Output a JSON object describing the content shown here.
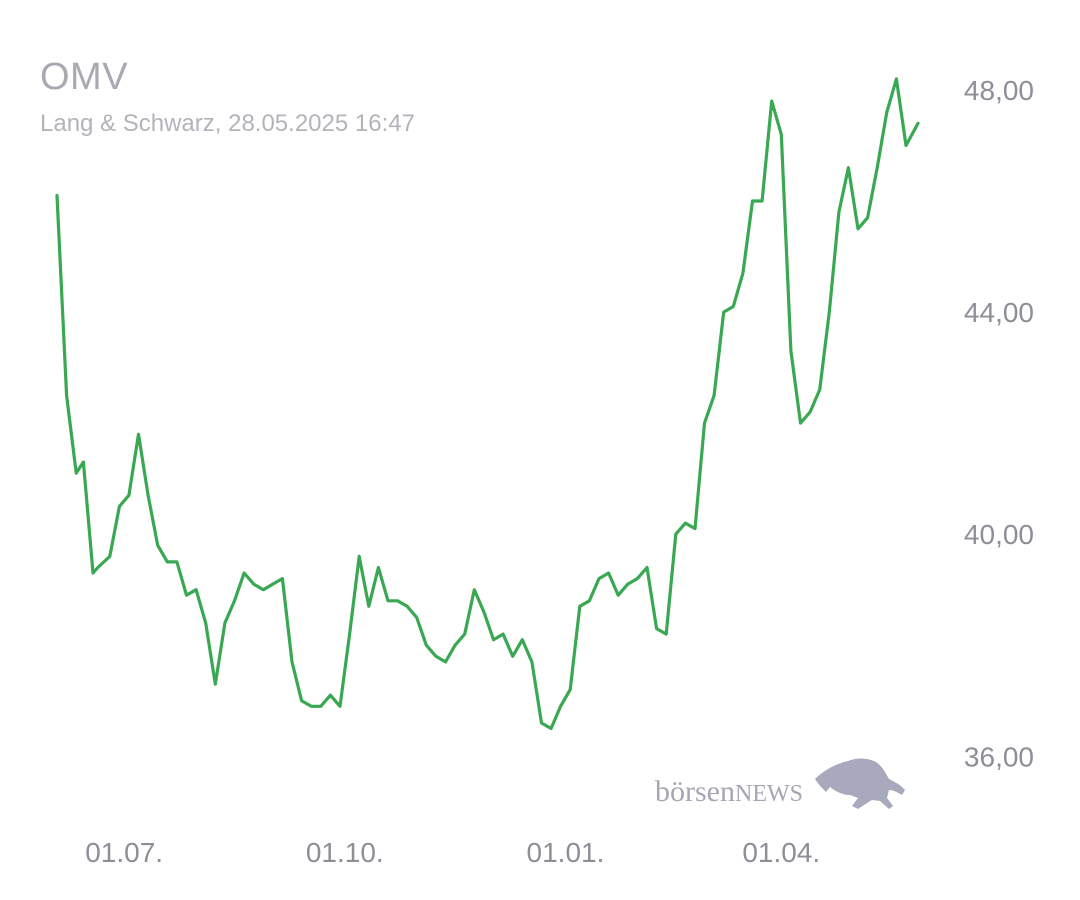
{
  "header": {
    "title": "OMV",
    "subtitle": "Lang & Schwarz, 28.05.2025 16:47"
  },
  "watermark": {
    "prefix": "börsen",
    "suffix": "NEWS",
    "icon": "bull-icon"
  },
  "colors": {
    "line": "#3aa852",
    "text": "#8e8e98",
    "title": "#a9a9b2",
    "watermark": "#a5a5b5"
  },
  "chart_data": {
    "type": "line",
    "title": "OMV",
    "subtitle": "Lang & Schwarz, 28.05.2025 16:47",
    "xlabel": "",
    "ylabel": "",
    "ylim": [
      34.6,
      48.9
    ],
    "xlim": [
      "2025-05-28",
      "2025-05-28"
    ],
    "yticks": [
      48.0,
      44.0,
      40.0,
      36.0
    ],
    "ytick_labels": [
      "48,00",
      "44,00",
      "40,00",
      "36,00"
    ],
    "xticks": [
      "2024-07-01",
      "2024-10-01",
      "2025-01-01",
      "2025-04-01"
    ],
    "xtick_labels": [
      "01.07.",
      "01.10.",
      "01.01.",
      "01.04."
    ],
    "y_axis_position": "right",
    "grid": false,
    "series": [
      {
        "points": [
          [
            "2024-06-03",
            46.1
          ],
          [
            "2024-06-07",
            42.5
          ],
          [
            "2024-06-11",
            41.1
          ],
          [
            "2024-06-14",
            41.3
          ],
          [
            "2024-06-18",
            39.3
          ],
          [
            "2024-06-20",
            39.4
          ],
          [
            "2024-06-25",
            39.6
          ],
          [
            "2024-06-29",
            40.5
          ],
          [
            "2024-07-03",
            40.7
          ],
          [
            "2024-07-07",
            41.8
          ],
          [
            "2024-07-11",
            40.7
          ],
          [
            "2024-07-15",
            39.8
          ],
          [
            "2024-07-19",
            39.5
          ],
          [
            "2024-07-23",
            39.5
          ],
          [
            "2024-07-27",
            38.9
          ],
          [
            "2024-07-31",
            39.0
          ],
          [
            "2024-08-04",
            38.4
          ],
          [
            "2024-08-08",
            37.3
          ],
          [
            "2024-08-12",
            38.4
          ],
          [
            "2024-08-16",
            38.8
          ],
          [
            "2024-08-20",
            39.3
          ],
          [
            "2024-08-24",
            39.1
          ],
          [
            "2024-08-28",
            39.0
          ],
          [
            "2024-09-01",
            39.1
          ],
          [
            "2024-09-05",
            39.2
          ],
          [
            "2024-09-09",
            37.7
          ],
          [
            "2024-09-13",
            37.0
          ],
          [
            "2024-09-17",
            36.9
          ],
          [
            "2024-09-21",
            36.9
          ],
          [
            "2024-09-25",
            37.1
          ],
          [
            "2024-09-29",
            36.9
          ],
          [
            "2024-10-03",
            38.2
          ],
          [
            "2024-10-07",
            39.6
          ],
          [
            "2024-10-11",
            38.7
          ],
          [
            "2024-10-15",
            39.4
          ],
          [
            "2024-10-19",
            38.8
          ],
          [
            "2024-10-23",
            38.8
          ],
          [
            "2024-10-27",
            38.7
          ],
          [
            "2024-10-31",
            38.5
          ],
          [
            "2024-11-04",
            38.0
          ],
          [
            "2024-11-08",
            37.8
          ],
          [
            "2024-11-12",
            37.7
          ],
          [
            "2024-11-16",
            38.0
          ],
          [
            "2024-11-20",
            38.2
          ],
          [
            "2024-11-24",
            39.0
          ],
          [
            "2024-11-28",
            38.6
          ],
          [
            "2024-12-02",
            38.1
          ],
          [
            "2024-12-06",
            38.2
          ],
          [
            "2024-12-10",
            37.8
          ],
          [
            "2024-12-14",
            38.1
          ],
          [
            "2024-12-18",
            37.7
          ],
          [
            "2024-12-22",
            36.6
          ],
          [
            "2024-12-26",
            36.5
          ],
          [
            "2024-12-30",
            36.9
          ],
          [
            "2025-01-03",
            37.2
          ],
          [
            "2025-01-07",
            38.7
          ],
          [
            "2025-01-11",
            38.8
          ],
          [
            "2025-01-15",
            39.2
          ],
          [
            "2025-01-19",
            39.3
          ],
          [
            "2025-01-23",
            38.9
          ],
          [
            "2025-01-27",
            39.1
          ],
          [
            "2025-01-31",
            39.2
          ],
          [
            "2025-02-04",
            39.4
          ],
          [
            "2025-02-08",
            38.3
          ],
          [
            "2025-02-12",
            38.2
          ],
          [
            "2025-02-16",
            40.0
          ],
          [
            "2025-02-20",
            40.2
          ],
          [
            "2025-02-24",
            40.1
          ],
          [
            "2025-02-28",
            42.0
          ],
          [
            "2025-03-04",
            42.5
          ],
          [
            "2025-03-08",
            44.0
          ],
          [
            "2025-03-12",
            44.1
          ],
          [
            "2025-03-16",
            44.7
          ],
          [
            "2025-03-20",
            46.0
          ],
          [
            "2025-03-24",
            46.0
          ],
          [
            "2025-03-28",
            47.8
          ],
          [
            "2025-04-01",
            47.2
          ],
          [
            "2025-04-05",
            43.3
          ],
          [
            "2025-04-09",
            42.0
          ],
          [
            "2025-04-13",
            42.2
          ],
          [
            "2025-04-17",
            42.6
          ],
          [
            "2025-04-21",
            44.0
          ],
          [
            "2025-04-25",
            45.8
          ],
          [
            "2025-04-29",
            46.6
          ],
          [
            "2025-05-03",
            45.5
          ],
          [
            "2025-05-07",
            45.7
          ],
          [
            "2025-05-11",
            46.6
          ],
          [
            "2025-05-15",
            47.6
          ],
          [
            "2025-05-19",
            48.2
          ],
          [
            "2025-05-23",
            47.0
          ],
          [
            "2025-05-28",
            47.4
          ]
        ]
      }
    ]
  }
}
